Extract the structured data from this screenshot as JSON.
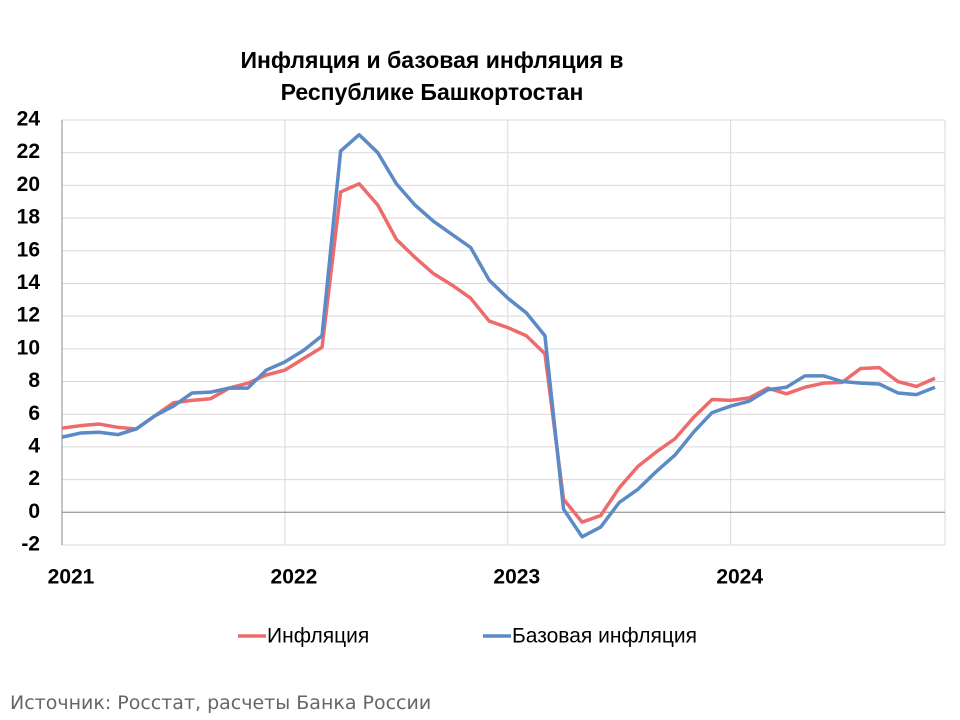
{
  "chart_data": {
    "type": "line",
    "title": "Инфляция и базовая инфляция в Республике Башкортостан",
    "source": "Источник: Росстат, расчеты Банка России",
    "categories": [
      "2021",
      null,
      null,
      null,
      null,
      null,
      null,
      null,
      null,
      null,
      null,
      null,
      "2022",
      null,
      null,
      null,
      null,
      null,
      null,
      null,
      null,
      null,
      null,
      null,
      "2023",
      null,
      null,
      null,
      null,
      null,
      null,
      null,
      null,
      null,
      null,
      null,
      "2024",
      null,
      null,
      null,
      null,
      null,
      null,
      null,
      null,
      null,
      null,
      null
    ],
    "series": [
      {
        "name": "Инфляция",
        "color": "#ee6b6b",
        "values": [
          5.15,
          5.3,
          5.4,
          5.2,
          5.1,
          5.9,
          6.7,
          6.85,
          6.95,
          7.6,
          7.9,
          8.4,
          8.7,
          9.4,
          10.1,
          19.6,
          20.1,
          18.8,
          16.7,
          15.6,
          14.6,
          13.9,
          13.1,
          11.7,
          11.3,
          10.8,
          9.7,
          0.8,
          -0.6,
          -0.2,
          1.5,
          2.8,
          3.7,
          4.5,
          5.8,
          6.9,
          6.85,
          7.0,
          7.6,
          7.25,
          7.65,
          7.9,
          7.95,
          8.8,
          8.85,
          8.0,
          7.7,
          8.2
        ]
      },
      {
        "name": "Базовая инфляция",
        "color": "#5b8ac6",
        "values": [
          4.6,
          4.85,
          4.9,
          4.75,
          5.1,
          5.9,
          6.5,
          7.3,
          7.35,
          7.6,
          7.6,
          8.7,
          9.2,
          9.9,
          10.8,
          22.1,
          23.1,
          22.0,
          20.1,
          18.8,
          17.8,
          17.0,
          16.2,
          14.2,
          13.1,
          12.2,
          10.8,
          0.2,
          -1.5,
          -0.9,
          0.6,
          1.4,
          2.5,
          3.5,
          4.9,
          6.1,
          6.5,
          6.8,
          7.5,
          7.65,
          8.35,
          8.35,
          8.0,
          7.9,
          7.85,
          7.3,
          7.2,
          7.65
        ]
      }
    ],
    "ylim": [
      -2,
      24
    ],
    "yticks": [
      -2,
      0,
      2,
      4,
      6,
      8,
      10,
      12,
      14,
      16,
      18,
      20,
      22,
      24
    ],
    "grid": true,
    "legend": "bottom"
  }
}
